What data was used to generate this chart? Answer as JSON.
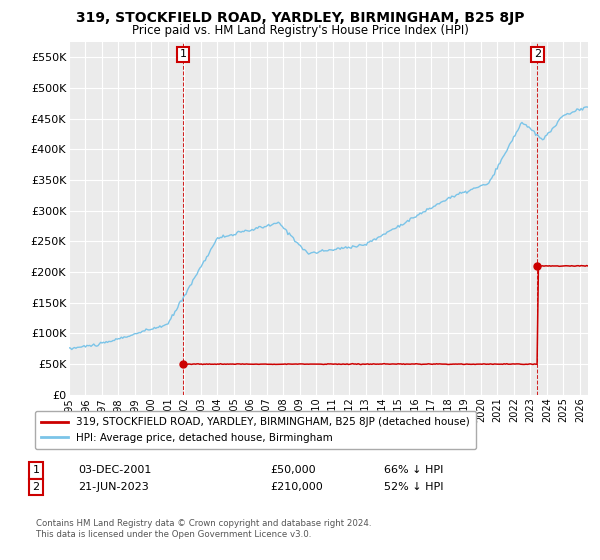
{
  "title": "319, STOCKFIELD ROAD, YARDLEY, BIRMINGHAM, B25 8JP",
  "subtitle": "Price paid vs. HM Land Registry's House Price Index (HPI)",
  "hpi_label": "HPI: Average price, detached house, Birmingham",
  "price_label": "319, STOCKFIELD ROAD, YARDLEY, BIRMINGHAM, B25 8JP (detached house)",
  "hpi_color": "#7bc4e8",
  "price_color": "#cc0000",
  "annotation1_date": "03-DEC-2001",
  "annotation1_price": 50000,
  "annotation1_pct": "66% ↓ HPI",
  "annotation2_date": "21-JUN-2023",
  "annotation2_price": 210000,
  "annotation2_pct": "52% ↓ HPI",
  "ylim": [
    0,
    575000
  ],
  "yticks": [
    0,
    50000,
    100000,
    150000,
    200000,
    250000,
    300000,
    350000,
    400000,
    450000,
    500000,
    550000
  ],
  "footer1": "Contains HM Land Registry data © Crown copyright and database right 2024.",
  "footer2": "This data is licensed under the Open Government Licence v3.0.",
  "bg_color": "#ebebeb",
  "grid_color": "#ffffff"
}
